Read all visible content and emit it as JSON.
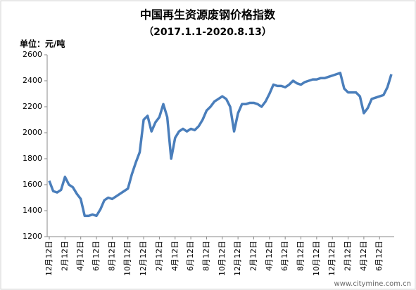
{
  "chart_data": {
    "type": "line",
    "title": "中国再生资源废钢价格指数",
    "subtitle": "（2017.1.1-2020.8.13）",
    "y_label": "单位：元/吨",
    "watermark": "www.citymine.com.cn",
    "categories": [
      "12月12日",
      null,
      null,
      null,
      "2月12日",
      null,
      null,
      null,
      "4月12日",
      null,
      null,
      null,
      "6月12日",
      null,
      null,
      null,
      "8月12日",
      null,
      null,
      null,
      "10月12日",
      null,
      null,
      null,
      "12月12日",
      null,
      null,
      null,
      "2月12日",
      null,
      null,
      null,
      "4月12日",
      null,
      null,
      null,
      "6月12日",
      null,
      null,
      null,
      "8月12日",
      null,
      null,
      null,
      "10月12日",
      null,
      null,
      null,
      "12月12日",
      null,
      null,
      null,
      "2月12日",
      null,
      null,
      null,
      "4月12日",
      null,
      null,
      null,
      "6月12日",
      null,
      null,
      null,
      "8月12日",
      null,
      null,
      null,
      "10月12日",
      null,
      null,
      null,
      "12月12日",
      null,
      null,
      null,
      "2月12日",
      null,
      null,
      null,
      "4月12日",
      null,
      null,
      null,
      "6月12日",
      null,
      null,
      null
    ],
    "series": [
      {
        "color": "#4a7ebb",
        "values": [
          1630,
          1550,
          1540,
          1560,
          1660,
          1600,
          1580,
          1530,
          1490,
          1360,
          1360,
          1370,
          1360,
          1410,
          1480,
          1500,
          1490,
          1510,
          1530,
          1550,
          1570,
          1680,
          1770,
          1850,
          2100,
          2130,
          2010,
          2080,
          2120,
          2220,
          2120,
          1800,
          1960,
          2010,
          2030,
          2010,
          2030,
          2020,
          2050,
          2100,
          2170,
          2200,
          2240,
          2260,
          2280,
          2260,
          2200,
          2010,
          2150,
          2220,
          2220,
          2230,
          2230,
          2220,
          2200,
          2240,
          2300,
          2370,
          2360,
          2360,
          2350,
          2370,
          2400,
          2380,
          2370,
          2390,
          2400,
          2410,
          2410,
          2420,
          2420,
          2430,
          2440,
          2450,
          2460,
          2340,
          2310,
          2310,
          2310,
          2280,
          2150,
          2190,
          2260,
          2270,
          2280,
          2290,
          2350,
          2450
        ]
      }
    ],
    "ylim": [
      1200,
      2600
    ],
    "yticks": [
      1200,
      1400,
      1600,
      1800,
      2000,
      2200,
      2400,
      2600
    ]
  }
}
